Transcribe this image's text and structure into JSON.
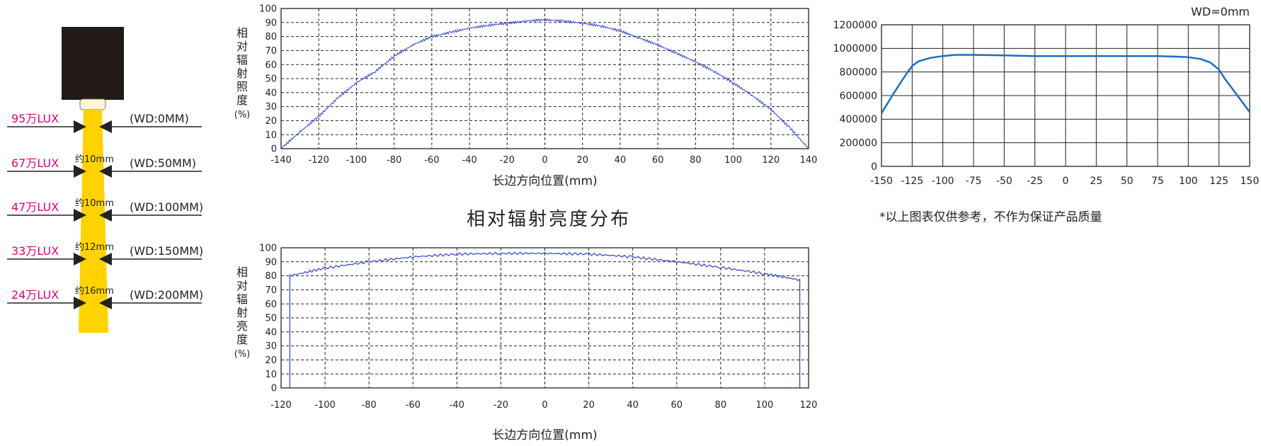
{
  "diagram": {
    "distances": [
      {
        "lux": "95万LUX",
        "wd": "(WD:0MM)",
        "width": ""
      },
      {
        "lux": "67万LUX",
        "wd": "(WD:50MM)",
        "width": "约10mm"
      },
      {
        "lux": "47万LUX",
        "wd": "(WD:100MM)",
        "width": "约10mm"
      },
      {
        "lux": "33万LUX",
        "wd": "(WD:150MM)",
        "width": "约12mm"
      },
      {
        "lux": "24万LUX",
        "wd": "(WD:200MM)",
        "width": "约16mm"
      }
    ],
    "colors": {
      "lux": "#e4007f",
      "beam": "#ffd200",
      "housing": "#221a16"
    }
  },
  "middle_title": "相对辐射亮度分布",
  "note": "*以上图表仅供参考，不作为保证产品质量",
  "wd_label": "WD=0mm",
  "chart_data": [
    {
      "id": "irradiance",
      "type": "line",
      "ylabel": "相对辐射照度(%)",
      "xlabel": "长边方向位置(mm)",
      "xlim": [
        -140,
        140
      ],
      "ylim": [
        0,
        100
      ],
      "xticks": [
        -140,
        -120,
        -100,
        -80,
        -60,
        -40,
        -20,
        0,
        20,
        40,
        60,
        80,
        100,
        120,
        140
      ],
      "yticks": [
        0,
        10,
        20,
        30,
        40,
        50,
        60,
        70,
        80,
        90,
        100
      ],
      "grid": "dashed",
      "color": "#2a3fd6",
      "series": [
        {
          "x": [
            -140,
            -130,
            -120,
            -110,
            -100,
            -90,
            -80,
            -70,
            -60,
            -50,
            -40,
            -30,
            -20,
            -10,
            0,
            10,
            20,
            30,
            40,
            50,
            60,
            70,
            80,
            90,
            100,
            110,
            120,
            130,
            140
          ],
          "y": [
            0,
            12,
            23,
            36,
            47,
            55,
            66,
            74,
            80,
            83,
            86,
            88,
            89.5,
            91,
            92,
            91,
            89.5,
            87.5,
            84,
            79,
            74,
            68,
            62,
            55,
            47,
            38,
            28,
            15,
            0
          ]
        }
      ]
    },
    {
      "id": "radiance",
      "type": "line",
      "ylabel": "相对辐射亮度(%)",
      "xlabel": "长边方向位置(mm)",
      "xlim": [
        -120,
        120
      ],
      "ylim": [
        0,
        100
      ],
      "xticks": [
        -120,
        -100,
        -80,
        -60,
        -40,
        -20,
        0,
        20,
        40,
        60,
        80,
        100,
        120
      ],
      "yticks": [
        0,
        10,
        20,
        30,
        40,
        50,
        60,
        70,
        80,
        90,
        100
      ],
      "grid": "dashed",
      "color": "#2a3fd6",
      "series": [
        {
          "x": [
            -116,
            -116,
            -100,
            -80,
            -60,
            -40,
            -20,
            0,
            20,
            40,
            60,
            80,
            100,
            116,
            116
          ],
          "y": [
            0,
            80,
            85.5,
            90,
            93.5,
            95.5,
            96,
            96,
            95.5,
            93.5,
            90,
            86,
            81.5,
            77,
            0
          ]
        }
      ]
    },
    {
      "id": "absolute",
      "type": "line",
      "xlim": [
        -150,
        150
      ],
      "ylim": [
        0,
        1200000
      ],
      "xticks": [
        -150,
        -125,
        -100,
        -75,
        -50,
        -25,
        0,
        25,
        50,
        75,
        100,
        125,
        150
      ],
      "yticks": [
        0,
        200000,
        400000,
        600000,
        800000,
        1000000,
        1200000
      ],
      "grid": "solid",
      "color": "#1a6fbf",
      "series": [
        {
          "x": [
            -150,
            -140,
            -130,
            -125,
            -120,
            -110,
            -100,
            -90,
            -75,
            -50,
            -25,
            0,
            25,
            50,
            75,
            90,
            100,
            110,
            118,
            125,
            130,
            140,
            150
          ],
          "y": [
            450000,
            620000,
            780000,
            850000,
            890000,
            920000,
            935000,
            945000,
            945000,
            940000,
            935000,
            935000,
            935000,
            935000,
            935000,
            930000,
            925000,
            910000,
            880000,
            820000,
            740000,
            600000,
            460000
          ]
        }
      ]
    }
  ]
}
